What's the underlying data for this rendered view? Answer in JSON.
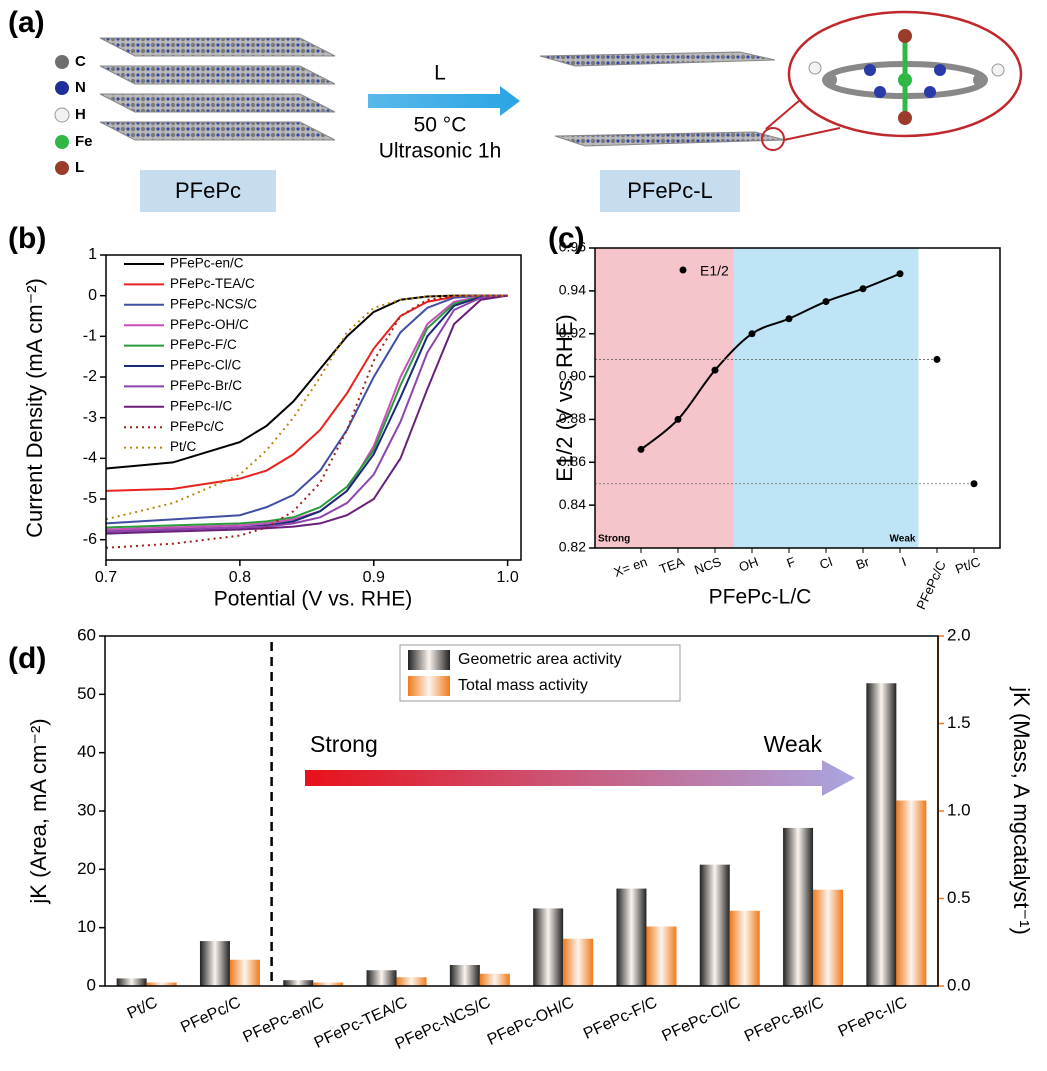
{
  "schematic": {
    "label": "(a)",
    "atoms": [
      "C",
      "N",
      "H",
      "Fe",
      "L"
    ],
    "start": "PFePc",
    "reagent": "L",
    "temperature": "50 °C",
    "condition": "Ultrasonic 1h",
    "product": "PFePc-L"
  },
  "chart_data": [
    {
      "type": "line",
      "label": "(b)",
      "xlabel": "Potential (V vs. RHE)",
      "ylabel": "Current Density (mA cm⁻²)",
      "xlim": [
        0.7,
        1.01
      ],
      "xticks": [
        0.7,
        0.8,
        0.9,
        {
          "value": 1,
          "label": "1.0"
        }
      ],
      "ylim": [
        -6.5,
        1
      ],
      "yticks": [
        -6,
        -5,
        -4,
        -3,
        -2,
        -1,
        0,
        1
      ],
      "x": [
        0.7,
        0.75,
        0.8,
        0.82,
        0.84,
        0.86,
        0.88,
        0.9,
        0.92,
        0.94,
        0.96,
        0.98,
        1.0
      ],
      "series": [
        {
          "name": "PFePc-en/C",
          "color": "#000000",
          "values": [
            -4.25,
            -4.1,
            -3.6,
            -3.2,
            -2.6,
            -1.8,
            -1.0,
            -0.4,
            -0.1,
            -0.02,
            0,
            0,
            0
          ]
        },
        {
          "name": "PFePc-TEA/C",
          "color": "#e8231f",
          "values": [
            -4.8,
            -4.75,
            -4.5,
            -4.3,
            -3.9,
            -3.3,
            -2.4,
            -1.3,
            -0.5,
            -0.15,
            -0.03,
            0,
            0
          ]
        },
        {
          "name": "PFePc-NCS/C",
          "color": "#3f4fa3",
          "values": [
            -5.6,
            -5.5,
            -5.4,
            -5.2,
            -4.9,
            -4.3,
            -3.3,
            -2.0,
            -0.9,
            -0.3,
            -0.05,
            0,
            0
          ]
        },
        {
          "name": "PFePc-OH/C",
          "color": "#c94fb8",
          "values": [
            -5.75,
            -5.7,
            -5.65,
            -5.6,
            -5.5,
            -5.3,
            -4.8,
            -3.7,
            -2.0,
            -0.7,
            -0.15,
            -0.02,
            0
          ]
        },
        {
          "name": "PFePc-F/C",
          "color": "#2a9b3c",
          "values": [
            -5.7,
            -5.65,
            -5.6,
            -5.55,
            -5.45,
            -5.2,
            -4.7,
            -3.8,
            -2.2,
            -0.8,
            -0.2,
            -0.03,
            0
          ]
        },
        {
          "name": "PFePc-Cl/C",
          "color": "#1a2a7a",
          "values": [
            -5.8,
            -5.75,
            -5.7,
            -5.65,
            -5.55,
            -5.3,
            -4.8,
            -3.9,
            -2.5,
            -1.0,
            -0.25,
            -0.03,
            0
          ]
        },
        {
          "name": "PFePc-Br/C",
          "color": "#8e44ad",
          "values": [
            -5.8,
            -5.75,
            -5.7,
            -5.68,
            -5.6,
            -5.45,
            -5.1,
            -4.4,
            -3.1,
            -1.4,
            -0.35,
            -0.05,
            0
          ]
        },
        {
          "name": "PFePc-I/C",
          "color": "#6a1f7a",
          "values": [
            -5.85,
            -5.8,
            -5.75,
            -5.72,
            -5.68,
            -5.6,
            -5.4,
            -5.0,
            -4.0,
            -2.3,
            -0.7,
            -0.1,
            0
          ]
        },
        {
          "name": "PFePc/C",
          "color": "#a0201a",
          "style": "dotted",
          "values": [
            -6.2,
            -6.1,
            -5.9,
            -5.7,
            -5.3,
            -4.6,
            -3.3,
            -1.6,
            -0.5,
            -0.1,
            -0.02,
            0,
            0
          ]
        },
        {
          "name": "Pt/C",
          "color": "#b8860b",
          "style": "dotted",
          "values": [
            -5.5,
            -5.1,
            -4.4,
            -3.8,
            -3.0,
            -2.0,
            -0.9,
            -0.3,
            -0.1,
            -0.02,
            0,
            0,
            0
          ]
        }
      ]
    },
    {
      "type": "scatter",
      "label": "(c)",
      "xlabel": "PFePc-L/C",
      "ylabel": "E1/2 (V vs. RHE)",
      "categories": [
        "X= en",
        "TEA",
        "NCS",
        "OH",
        "F",
        "Cl",
        "Br",
        "I",
        "PFePc/C",
        "Pt/C"
      ],
      "ylim": [
        0.82,
        0.96
      ],
      "yticks": [
        0.82,
        0.84,
        0.86,
        0.88,
        {
          "value": 0.9,
          "label": "0.90"
        },
        0.92,
        0.94,
        0.96
      ],
      "regions": [
        {
          "label": "Strong",
          "color": "#f5c5cb",
          "text_color": "#e8231f",
          "span": [
            0,
            2
          ]
        },
        {
          "label": "Weak",
          "color": "#bfe4f5",
          "text_color": "#3a3aa0",
          "span": [
            3,
            7
          ]
        }
      ],
      "series": [
        {
          "name": "E1/2",
          "color": "#000000",
          "line": true,
          "values": [
            0.866,
            0.88,
            0.903,
            0.92,
            0.927,
            0.935,
            0.941,
            0.948,
            null,
            null
          ]
        },
        {
          "color": "#000000",
          "values": [
            null,
            null,
            null,
            null,
            null,
            null,
            null,
            null,
            0.908,
            0.85
          ]
        }
      ]
    },
    {
      "type": "bar",
      "label": "(d)",
      "ylabel": "jK (Area, mA cm⁻²)",
      "y2label": "jK (Mass, A mgcatalyst⁻¹)",
      "categories": [
        "Pt/C",
        "PFePc/C",
        "PFePc-en/C",
        "PFePc-TEA/C",
        "PFePc-NCS/C",
        "PFePc-OH/C",
        "PFePc-F/C",
        "PFePc-Cl/C",
        "PFePc-Br/C",
        "PFePc-I/C"
      ],
      "ylim": [
        0,
        60
      ],
      "yticks": [
        0,
        10,
        20,
        30,
        40,
        50,
        60
      ],
      "y2lim": [
        0,
        2
      ],
      "y2ticks": [
        {
          "value": 0,
          "label": "0.0"
        },
        0.5,
        {
          "value": 1,
          "label": "1.0"
        },
        1.5,
        {
          "value": 2,
          "label": "2.0"
        }
      ],
      "y2color": "#f07a1a",
      "series": [
        {
          "name": "Geometric area activity",
          "color": "#222222",
          "values": [
            1.3,
            7.7,
            1.0,
            2.7,
            3.6,
            13.3,
            16.7,
            20.8,
            27.1,
            51.9
          ]
        },
        {
          "name": "Total mass activity",
          "color": "#f07a1a",
          "axis": "y2",
          "values": [
            0.02,
            0.15,
            0.02,
            0.05,
            0.07,
            0.27,
            0.34,
            0.43,
            0.55,
            1.06
          ]
        }
      ],
      "annotations": [
        {
          "text": "Strong",
          "color": "#e8231f"
        },
        {
          "text": "Weak",
          "color": "#2f7fc1"
        }
      ],
      "arrow_colors": [
        "#e8101a",
        "#aaa6e2"
      ]
    }
  ]
}
